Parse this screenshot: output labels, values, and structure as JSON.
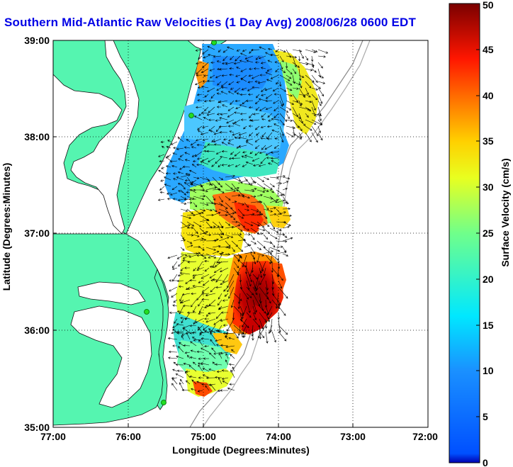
{
  "title": "Southern Mid-Atlantic Raw Velocities (1 Day Avg) 2008/06/28 0600 EDT",
  "map": {
    "xlabel": "Longitude (Degrees:Minutes)",
    "ylabel": "Latitude (Degrees:Minutes)",
    "x_ticks": [
      "77:00",
      "76:00",
      "75:00",
      "74:00",
      "73:00",
      "72:00"
    ],
    "y_ticks": [
      "39:00",
      "38:00",
      "37:00",
      "36:00",
      "35:00"
    ],
    "lon_range": [
      -77,
      -72
    ],
    "lat_range": [
      35,
      39
    ],
    "grid": "dotted",
    "land_color": "#55f5b0",
    "water_color": "#ffffff"
  },
  "colorbar": {
    "label": "Surface Velocity (cm/s)",
    "ticks": [
      "0",
      "5",
      "10",
      "15",
      "20",
      "25",
      "30",
      "35",
      "40",
      "45",
      "50"
    ],
    "min": 0,
    "max": 50,
    "colormap": "jet"
  },
  "stations": [
    {
      "lon": -74.85,
      "lat": 38.99
    },
    {
      "lon": -75.15,
      "lat": 38.22
    },
    {
      "lon": -75.6,
      "lat": 36.2
    },
    {
      "lon": -75.48,
      "lat": 35.25
    }
  ]
}
